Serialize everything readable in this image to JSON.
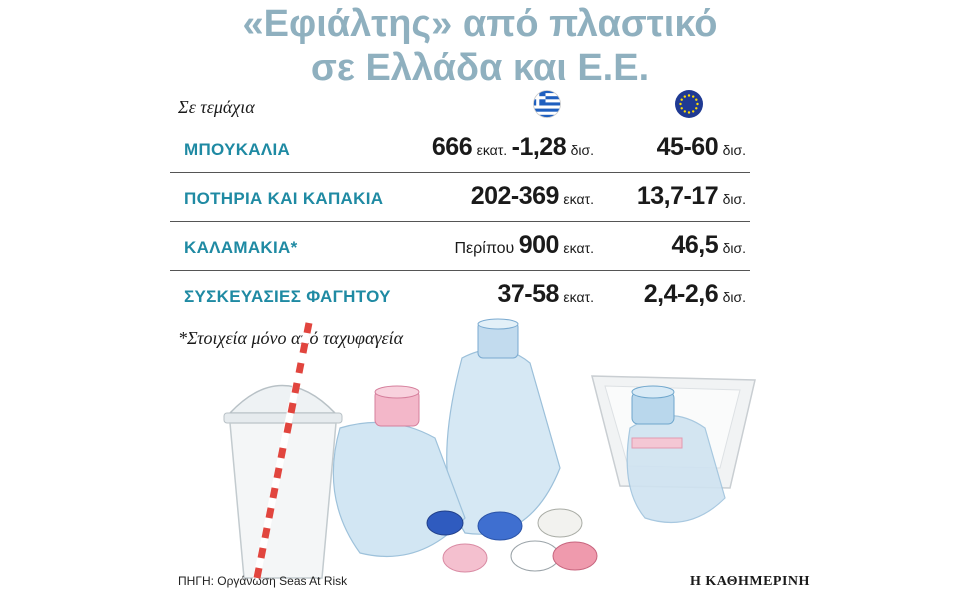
{
  "chart_data": {
    "type": "table",
    "title_line1": "«Εφιάλτης» από πλαστικό",
    "title_line2": "σε Ελλάδα και Ε.Ε.",
    "unit_note": "Σε τεμάχια",
    "columns": [
      "greece-flag-icon",
      "eu-flag-icon"
    ],
    "rows": [
      {
        "label": "ΜΠΟΥΚΑΛΙΑ",
        "gr_prefix": "",
        "gr_value": "666",
        "gr_unit": "εκατ.",
        "gr_value2": "-1,28",
        "gr_unit2": "δισ.",
        "eu_value": "45-60",
        "eu_unit": "δισ."
      },
      {
        "label": "ΠΟΤΗΡΙΑ ΚΑΙ ΚΑΠΑΚΙΑ",
        "gr_prefix": "",
        "gr_value": "202-369",
        "gr_unit": "εκατ.",
        "gr_value2": "",
        "gr_unit2": "",
        "eu_value": "13,7-17",
        "eu_unit": "δισ."
      },
      {
        "label": "ΚΑΛΑΜΑΚΙΑ*",
        "gr_prefix": "Περίπου",
        "gr_value": "900",
        "gr_unit": "εκατ.",
        "gr_value2": "",
        "gr_unit2": "",
        "eu_value": "46,5",
        "eu_unit": "δισ."
      },
      {
        "label": "ΣΥΣΚΕΥΑΣΙΕΣ ΦΑΓΗΤΟΥ",
        "gr_prefix": "",
        "gr_value": "37-58",
        "gr_unit": "εκατ.",
        "gr_value2": "",
        "gr_unit2": "",
        "eu_value": "2,4-2,6",
        "eu_unit": "δισ."
      }
    ],
    "footnote": "*Στοιχεία μόνο από ταχυφαγεία",
    "source": "ΠΗΓΗ: Οργάνωση Seas At Risk",
    "publisher": "Η ΚΑΘΗΜΕΡΙΝΗ"
  },
  "colors": {
    "title": "#8fb0bf",
    "row_label": "#1f8aa3",
    "greece_blue": "#1f5fbf",
    "eu_blue": "#1f3a93",
    "eu_star": "#ffdd00"
  }
}
